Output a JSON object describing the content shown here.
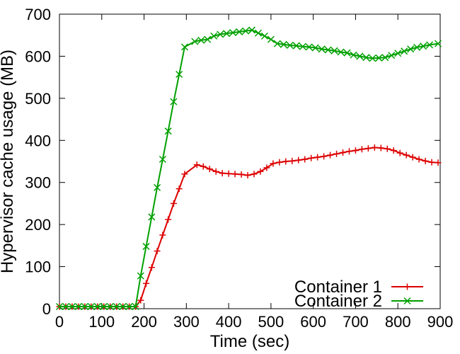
{
  "chart_data": {
    "type": "line",
    "title": "",
    "xlabel": "Time (sec)",
    "ylabel": "Hypervisor cache usage (MB)",
    "xlim": [
      0,
      900
    ],
    "ylim": [
      0,
      700
    ],
    "xticks": [
      0,
      100,
      200,
      300,
      400,
      500,
      600,
      700,
      800,
      900
    ],
    "yticks": [
      0,
      100,
      200,
      300,
      400,
      500,
      600,
      700
    ],
    "grid": false,
    "legend_position": "bottom-right",
    "series": [
      {
        "name": "Container 1",
        "color": "#dd0000",
        "marker": "plus",
        "points": [
          [
            0,
            5
          ],
          [
            15,
            5
          ],
          [
            30,
            5
          ],
          [
            45,
            5
          ],
          [
            60,
            5
          ],
          [
            75,
            5
          ],
          [
            90,
            5
          ],
          [
            105,
            5
          ],
          [
            120,
            5
          ],
          [
            135,
            5
          ],
          [
            150,
            5
          ],
          [
            165,
            5
          ],
          [
            180,
            5
          ],
          [
            192,
            20
          ],
          [
            205,
            60
          ],
          [
            218,
            98
          ],
          [
            231,
            137
          ],
          [
            244,
            175
          ],
          [
            257,
            212
          ],
          [
            270,
            250
          ],
          [
            283,
            285
          ],
          [
            296,
            320
          ],
          [
            325,
            342
          ],
          [
            340,
            338
          ],
          [
            355,
            332
          ],
          [
            370,
            326
          ],
          [
            385,
            322
          ],
          [
            400,
            321
          ],
          [
            415,
            320
          ],
          [
            430,
            319
          ],
          [
            445,
            317
          ],
          [
            460,
            320
          ],
          [
            475,
            326
          ],
          [
            490,
            335
          ],
          [
            505,
            345
          ],
          [
            520,
            348
          ],
          [
            535,
            350
          ],
          [
            550,
            351
          ],
          [
            565,
            353
          ],
          [
            580,
            355
          ],
          [
            595,
            358
          ],
          [
            610,
            360
          ],
          [
            625,
            362
          ],
          [
            640,
            365
          ],
          [
            655,
            368
          ],
          [
            670,
            371
          ],
          [
            685,
            374
          ],
          [
            700,
            376
          ],
          [
            715,
            379
          ],
          [
            730,
            381
          ],
          [
            745,
            383
          ],
          [
            760,
            382
          ],
          [
            775,
            380
          ],
          [
            790,
            376
          ],
          [
            805,
            370
          ],
          [
            820,
            365
          ],
          [
            835,
            360
          ],
          [
            850,
            355
          ],
          [
            865,
            351
          ],
          [
            880,
            348
          ],
          [
            895,
            347
          ]
        ]
      },
      {
        "name": "Container 2",
        "color": "#00a000",
        "marker": "x",
        "points": [
          [
            0,
            5
          ],
          [
            15,
            5
          ],
          [
            30,
            5
          ],
          [
            45,
            5
          ],
          [
            60,
            5
          ],
          [
            75,
            5
          ],
          [
            90,
            5
          ],
          [
            105,
            5
          ],
          [
            120,
            5
          ],
          [
            135,
            5
          ],
          [
            150,
            5
          ],
          [
            165,
            5
          ],
          [
            180,
            5
          ],
          [
            192,
            78
          ],
          [
            205,
            148
          ],
          [
            218,
            218
          ],
          [
            231,
            288
          ],
          [
            244,
            355
          ],
          [
            257,
            422
          ],
          [
            270,
            492
          ],
          [
            283,
            557
          ],
          [
            296,
            622
          ],
          [
            320,
            635
          ],
          [
            335,
            638
          ],
          [
            350,
            640
          ],
          [
            365,
            648
          ],
          [
            380,
            652
          ],
          [
            395,
            654
          ],
          [
            410,
            656
          ],
          [
            425,
            658
          ],
          [
            440,
            660
          ],
          [
            455,
            662
          ],
          [
            470,
            655
          ],
          [
            485,
            648
          ],
          [
            500,
            640
          ],
          [
            515,
            630
          ],
          [
            530,
            628
          ],
          [
            545,
            626
          ],
          [
            560,
            625
          ],
          [
            575,
            623
          ],
          [
            590,
            622
          ],
          [
            605,
            620
          ],
          [
            620,
            617
          ],
          [
            635,
            615
          ],
          [
            650,
            613
          ],
          [
            665,
            610
          ],
          [
            680,
            608
          ],
          [
            695,
            603
          ],
          [
            710,
            600
          ],
          [
            725,
            597
          ],
          [
            740,
            595
          ],
          [
            755,
            596
          ],
          [
            770,
            597
          ],
          [
            785,
            602
          ],
          [
            800,
            607
          ],
          [
            815,
            612
          ],
          [
            830,
            617
          ],
          [
            845,
            621
          ],
          [
            860,
            624
          ],
          [
            875,
            627
          ],
          [
            895,
            630
          ]
        ]
      }
    ]
  }
}
